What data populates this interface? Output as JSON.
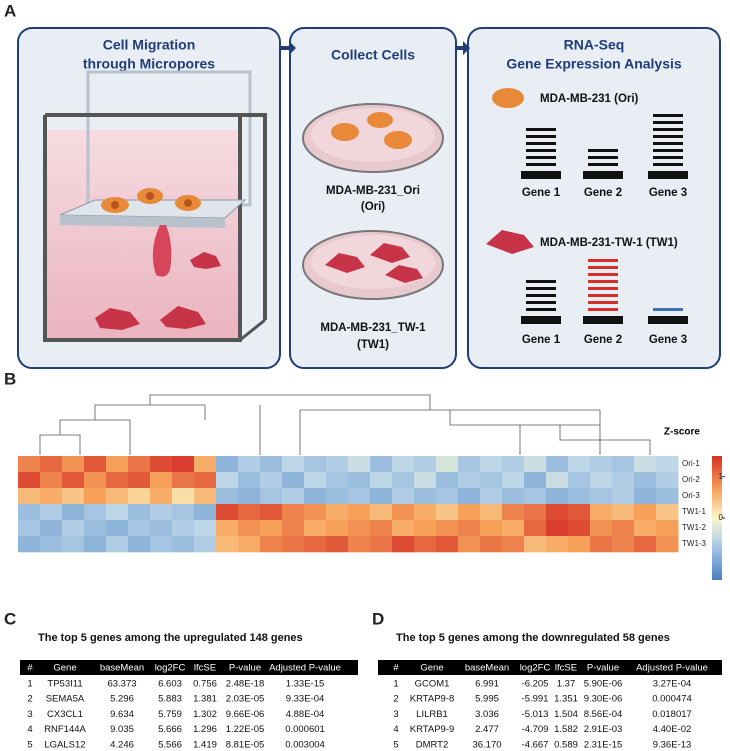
{
  "figure": {
    "panels": [
      "A",
      "B",
      "C",
      "D"
    ],
    "migration": {
      "title": [
        "Cell Migration",
        "through Micropores"
      ]
    },
    "collect": {
      "title": "Collect Cells",
      "dish1": [
        "MDA-MB-231_Ori",
        "(Ori)"
      ],
      "dish2": [
        "MDA-MB-231_TW-1",
        "(TW1)"
      ]
    },
    "rnaseq": {
      "title": [
        "RNA-Seq",
        "Gene Expression Analysis"
      ],
      "ori_label": "MDA-MB-231 (Ori)",
      "tw1_label": "MDA-MB-231-TW-1 (TW1)",
      "genes": [
        "Gene 1",
        "Gene 2",
        "Gene 3"
      ]
    }
  },
  "chart_data": {
    "type": "heatmap",
    "legend_title": "Z-score",
    "rows": [
      "Ori-1",
      "Ori-2",
      "Ori-3",
      "TW1-1",
      "TW1-2",
      "TW1-3"
    ],
    "zlim": [
      -1.5,
      1.5
    ],
    "zticks": [
      1,
      0
    ],
    "values": [
      [
        0.9,
        1.1,
        0.8,
        1.2,
        0.7,
        1.0,
        1.3,
        1.4,
        0.6,
        -0.9,
        -0.6,
        -0.8,
        -0.5,
        -0.7,
        -0.6,
        -0.4,
        -0.8,
        -0.5,
        -0.6,
        -0.3,
        -0.7,
        -0.5,
        -0.6,
        -0.4,
        -0.8,
        -0.5,
        -0.6,
        -0.7,
        -0.4,
        -0.5
      ],
      [
        1.3,
        0.9,
        1.2,
        0.8,
        1.1,
        1.2,
        0.7,
        1.0,
        1.1,
        -0.5,
        -0.8,
        -0.6,
        -0.9,
        -0.5,
        -0.7,
        -0.8,
        -0.5,
        -0.7,
        -0.4,
        -0.8,
        -0.6,
        -0.7,
        -0.5,
        -0.9,
        -0.4,
        -0.7,
        -0.5,
        -0.6,
        -0.8,
        -0.6
      ],
      [
        0.5,
        0.6,
        0.4,
        0.7,
        0.5,
        0.3,
        0.6,
        0.2,
        0.5,
        -0.8,
        -0.9,
        -0.7,
        -0.6,
        -0.9,
        -0.8,
        -0.7,
        -0.9,
        -0.6,
        -0.8,
        -0.7,
        -0.9,
        -0.6,
        -0.8,
        -0.7,
        -0.9,
        -0.8,
        -0.7,
        -0.6,
        -0.9,
        -0.8
      ],
      [
        -0.8,
        -0.6,
        -0.9,
        -0.7,
        -0.5,
        -0.8,
        -0.6,
        -0.7,
        -0.9,
        1.3,
        1.1,
        1.2,
        0.9,
        0.8,
        0.6,
        0.7,
        0.5,
        0.8,
        0.6,
        0.4,
        0.7,
        0.5,
        0.9,
        1.0,
        1.3,
        1.2,
        0.6,
        0.5,
        0.7,
        0.4
      ],
      [
        -0.7,
        -0.9,
        -0.6,
        -0.8,
        -0.9,
        -0.7,
        -0.8,
        -0.6,
        -0.5,
        0.6,
        0.8,
        0.7,
        0.9,
        0.6,
        0.7,
        0.8,
        0.9,
        0.6,
        0.7,
        0.8,
        0.9,
        0.7,
        0.6,
        1.1,
        1.4,
        1.3,
        0.8,
        0.9,
        0.6,
        0.7
      ],
      [
        -0.9,
        -0.8,
        -0.7,
        -0.9,
        -0.6,
        -0.9,
        -0.7,
        -0.8,
        -0.6,
        0.5,
        0.6,
        0.9,
        1.0,
        1.1,
        1.2,
        0.9,
        1.0,
        1.3,
        1.1,
        1.2,
        0.8,
        1.0,
        0.9,
        0.5,
        0.6,
        0.7,
        1.0,
        0.9,
        1.1,
        0.8
      ]
    ]
  },
  "tables": [
    {
      "title": "The top 5 genes among the upregulated 148 genes",
      "fc_color": "#e0302a",
      "header": [
        "#",
        "Gene",
        "baseMean",
        "log2FC",
        "lfcSE",
        "P-value",
        "Adjusted P-value"
      ],
      "rows": [
        [
          "1",
          "TP53I11",
          "63.373",
          "6.603",
          "0.756",
          "2.48E-18",
          "1.33E-15"
        ],
        [
          "2",
          "SEMA5A",
          "5.296",
          "5.883",
          "1.381",
          "2.03E-05",
          "9.33E-04"
        ],
        [
          "3",
          "CX3CL1",
          "9.634",
          "5.759",
          "1.302",
          "9.66E-06",
          "4.88E-04"
        ],
        [
          "4",
          "RNF144A",
          "9.035",
          "5.666",
          "1.296",
          "1.22E-05",
          "0.000601"
        ],
        [
          "5",
          "LGALS12",
          "4.246",
          "5.566",
          "1.419",
          "8.81E-05",
          "0.003004"
        ]
      ]
    },
    {
      "title": "The top 5 genes among the downregulated 58 genes",
      "fc_color": "#3a6fb5",
      "header": [
        "#",
        "Gene",
        "baseMean",
        "log2FC",
        "lfcSE",
        "P-value",
        "Adjusted P-value"
      ],
      "rows": [
        [
          "1",
          "GCOM1",
          "6.991",
          "-6.205",
          "1.37",
          "5.90E-06",
          "3.27E-04"
        ],
        [
          "2",
          "KRTAP9-8",
          "5.995",
          "-5.991",
          "1.351",
          "9.30E-06",
          "0.000474"
        ],
        [
          "3",
          "LILRB1",
          "3.036",
          "-5.013",
          "1.504",
          "8.56E-04",
          "0.018017"
        ],
        [
          "4",
          "KRTAP9-9",
          "2.477",
          "-4.709",
          "1.582",
          "2.91E-03",
          "4.40E-02"
        ],
        [
          "5",
          "DMRT2",
          "36.170",
          "-4.667",
          "0.589",
          "2.31E-15",
          "9.36E-13"
        ]
      ]
    }
  ]
}
